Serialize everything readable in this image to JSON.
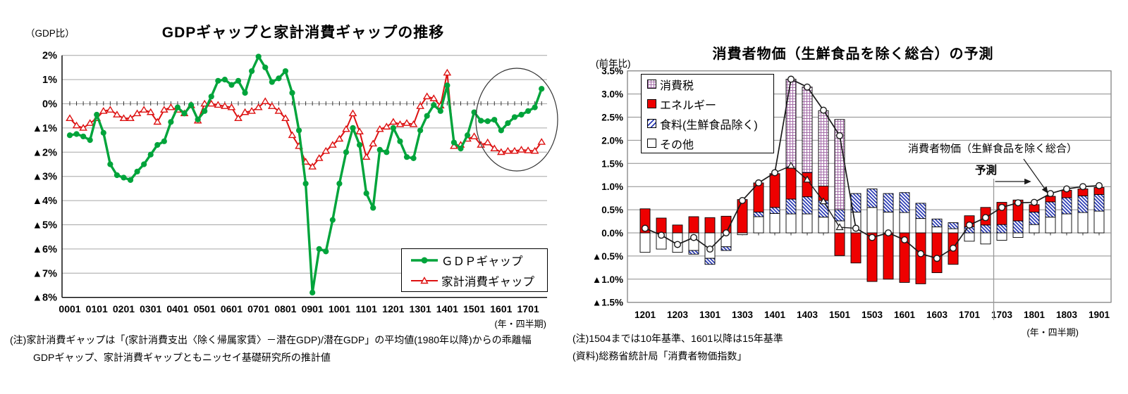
{
  "colors": {
    "gdp_gap_green": "#00A43B",
    "consumption_gap_red": "#DD1111",
    "energy_red": "#EE0000",
    "tax_hatch_purple": "#A46CA8",
    "food_hatch_blue": "#2B3BB5",
    "line_black": "#1a1a1a",
    "grid_gray": "#a6a6a6"
  },
  "chart_data": [
    {
      "type": "line",
      "title": "GDPギャップと家計消費ギャップの推移",
      "unit_label": "（GDP比）",
      "x_caption": "(年・四半期)",
      "x_start": "2000Q1",
      "x_end": "2017Q3",
      "n_points": 71,
      "x_tick_labels": [
        "0001",
        "0101",
        "0201",
        "0301",
        "0401",
        "0501",
        "0601",
        "0701",
        "0801",
        "0901",
        "1001",
        "1101",
        "1201",
        "1301",
        "1401",
        "1501",
        "1601",
        "1701"
      ],
      "ylim": [
        -8,
        2
      ],
      "ytick_values": [
        2,
        1,
        0,
        -1,
        -2,
        -3,
        -4,
        -5,
        -6,
        -7,
        -8
      ],
      "ytick_labels": [
        "2%",
        "1%",
        "0%",
        "▲1%",
        "▲2%",
        "▲3%",
        "▲4%",
        "▲5%",
        "▲6%",
        "▲7%",
        "▲8%"
      ],
      "grid": true,
      "legend_position": "inside-bottom-right",
      "highlight_ellipse": {
        "note": "circle around recent quarters 2015-2017"
      },
      "series": [
        {
          "name": "ＧＤＰギャップ",
          "color": "#00A43B",
          "marker": "filled-circle",
          "values": [
            -1.3,
            -1.25,
            -1.35,
            -1.5,
            -0.45,
            -1.2,
            -2.5,
            -2.95,
            -3.05,
            -3.15,
            -2.8,
            -2.5,
            -2.1,
            -1.7,
            -1.55,
            -0.75,
            -0.15,
            -0.4,
            -0.05,
            -0.65,
            -0.3,
            0.3,
            0.95,
            1.0,
            0.78,
            0.95,
            0.45,
            1.35,
            1.95,
            1.5,
            0.9,
            1.05,
            1.35,
            0.45,
            -1.1,
            -3.3,
            -7.8,
            -6.0,
            -6.1,
            -4.8,
            -3.3,
            -2.0,
            -1.0,
            -1.7,
            -3.7,
            -4.3,
            -1.9,
            -2.0,
            -1.0,
            -1.55,
            -2.2,
            -2.25,
            -1.1,
            -0.5,
            -0.05,
            -0.3,
            0.76,
            -1.6,
            -1.85,
            -1.3,
            -0.35,
            -0.7,
            -0.72,
            -0.66,
            -1.1,
            -0.8,
            -0.55,
            -0.45,
            -0.3,
            -0.15,
            0.62
          ]
        },
        {
          "name": "家計消費ギャップ",
          "color": "#DD1111",
          "marker": "open-triangle",
          "values": [
            -0.6,
            -0.9,
            -1.0,
            -0.8,
            -0.6,
            -0.3,
            -0.25,
            -0.45,
            -0.6,
            -0.6,
            -0.4,
            -0.25,
            -0.35,
            -0.75,
            -0.25,
            -0.15,
            -0.25,
            -0.4,
            -0.07,
            -0.7,
            0.0,
            0.0,
            -0.05,
            -0.1,
            -0.15,
            -0.6,
            -0.35,
            -0.3,
            -0.15,
            0.1,
            -0.1,
            -0.3,
            -0.6,
            -1.3,
            -1.75,
            -2.4,
            -2.6,
            -2.25,
            -1.95,
            -1.7,
            -1.45,
            -1.05,
            -0.4,
            -1.15,
            -2.2,
            -1.65,
            -1.05,
            -0.95,
            -0.75,
            -0.85,
            -0.8,
            -0.85,
            -0.1,
            0.3,
            0.22,
            -0.08,
            1.28,
            -1.75,
            -1.7,
            -1.45,
            -1.35,
            -1.7,
            -1.6,
            -1.85,
            -2.0,
            -1.95,
            -1.95,
            -1.9,
            -1.93,
            -1.95,
            -1.58
          ]
        }
      ],
      "notes": [
        "(注)家計消費ギャップは「(家計消費支出〈除く帰属家賃〉－潜在GDP)/潜在GDP」の平均値(1980年以降)からの乖離幅",
        "GDPギャップ、家計消費ギャップともニッセイ基礎研究所の推計値"
      ]
    },
    {
      "type": "stacked-bar-with-line",
      "title": "消費者物価（生鮮食品を除く総合）の予測",
      "unit_label": "(前年比)",
      "x_caption": "(年・四半期)",
      "categories": [
        "1201",
        "1202",
        "1203",
        "1204",
        "1301",
        "1302",
        "1303",
        "1304",
        "1401",
        "1402",
        "1403",
        "1404",
        "1501",
        "1502",
        "1503",
        "1504",
        "1601",
        "1602",
        "1603",
        "1604",
        "1701",
        "1702",
        "1703",
        "1704",
        "1801",
        "1802",
        "1803",
        "1804",
        "1901"
      ],
      "x_tick_labels": [
        "1201",
        "1203",
        "1301",
        "1303",
        "1401",
        "1403",
        "1501",
        "1503",
        "1601",
        "1603",
        "1701",
        "1703",
        "1801",
        "1803",
        "1901"
      ],
      "ylim": [
        -1.5,
        3.5
      ],
      "ytick_values": [
        3.5,
        3.0,
        2.5,
        2.0,
        1.5,
        1.0,
        0.5,
        0.0,
        -0.5,
        -1.0,
        -1.5
      ],
      "ytick_labels": [
        "3.5%",
        "3.0%",
        "2.5%",
        "2.0%",
        "1.5%",
        "1.0%",
        "0.5%",
        "0.0%",
        "▲0.5%",
        "▲1.0%",
        "▲1.5%"
      ],
      "grid": true,
      "legend_position": "inside-top-left",
      "forecast_start_category": "1703",
      "components": [
        {
          "label": "消費税",
          "style": "crosshatch-purple",
          "values": [
            0,
            0,
            0,
            0,
            0,
            0,
            0,
            0,
            0,
            1.92,
            1.85,
            1.63,
            1.95,
            0,
            0,
            0,
            0,
            0,
            0,
            0,
            0,
            0,
            0,
            0,
            0,
            0,
            0,
            0,
            0
          ]
        },
        {
          "label": "エネルギー",
          "style": "solid-red",
          "values": [
            0.52,
            0.32,
            0.17,
            0.35,
            0.33,
            0.36,
            0.72,
            0.63,
            0.73,
            0.67,
            0.52,
            0.31,
            -0.49,
            -0.65,
            -1.05,
            -1.0,
            -1.07,
            -1.1,
            -0.86,
            -0.68,
            0.24,
            0.38,
            0.48,
            0.45,
            0.16,
            0.12,
            0.16,
            0.15,
            0.15
          ]
        },
        {
          "label": "食料(生鮮食品除く)",
          "style": "diagonal-blue",
          "values": [
            0,
            0,
            0,
            -0.08,
            -0.13,
            -0.08,
            0,
            0.1,
            0.13,
            0.32,
            0.37,
            0.36,
            0.24,
            0.4,
            0.4,
            0.4,
            0.43,
            0.33,
            0.17,
            0.13,
            0.13,
            0.17,
            0.18,
            0.26,
            0.27,
            0.33,
            0.35,
            0.36,
            0.36
          ]
        },
        {
          "label": "その他",
          "style": "white",
          "values": [
            -0.42,
            -0.35,
            -0.42,
            -0.38,
            -0.55,
            -0.3,
            -0.04,
            0.35,
            0.42,
            0.41,
            0.41,
            0.34,
            0.26,
            0.45,
            0.55,
            0.45,
            0.44,
            0.31,
            0.13,
            0.09,
            -0.18,
            -0.24,
            -0.16,
            -0.1,
            0.18,
            0.34,
            0.41,
            0.44,
            0.47
          ]
        }
      ],
      "line": {
        "name": "消費者物価（生鮮食品を除く総合）",
        "marker": "open-circle",
        "values": [
          0.1,
          -0.05,
          -0.25,
          -0.1,
          -0.35,
          0.0,
          0.7,
          1.08,
          1.3,
          3.32,
          3.15,
          2.65,
          2.1,
          0.1,
          -0.1,
          0.0,
          -0.15,
          -0.45,
          -0.55,
          -0.33,
          0.17,
          0.33,
          0.55,
          0.65,
          0.66,
          0.85,
          0.95,
          1.0,
          1.02
        ]
      },
      "line_excluding_tax": {
        "marker": "open-triangle",
        "values": [
          null,
          null,
          null,
          null,
          null,
          null,
          null,
          null,
          null,
          1.45,
          1.15,
          0.68,
          0.12,
          null,
          null,
          null,
          null,
          null,
          null,
          null,
          null,
          null,
          null,
          null,
          null,
          null,
          null,
          null,
          null
        ]
      },
      "annotations": {
        "forecast_label": "予測",
        "line_label": "消費者物価（生鮮食品を除く総合）"
      },
      "notes": [
        "(注)1504までは10年基準、1601以降は15年基準",
        "(資料)総務省統計局「消費者物価指数」"
      ]
    }
  ]
}
